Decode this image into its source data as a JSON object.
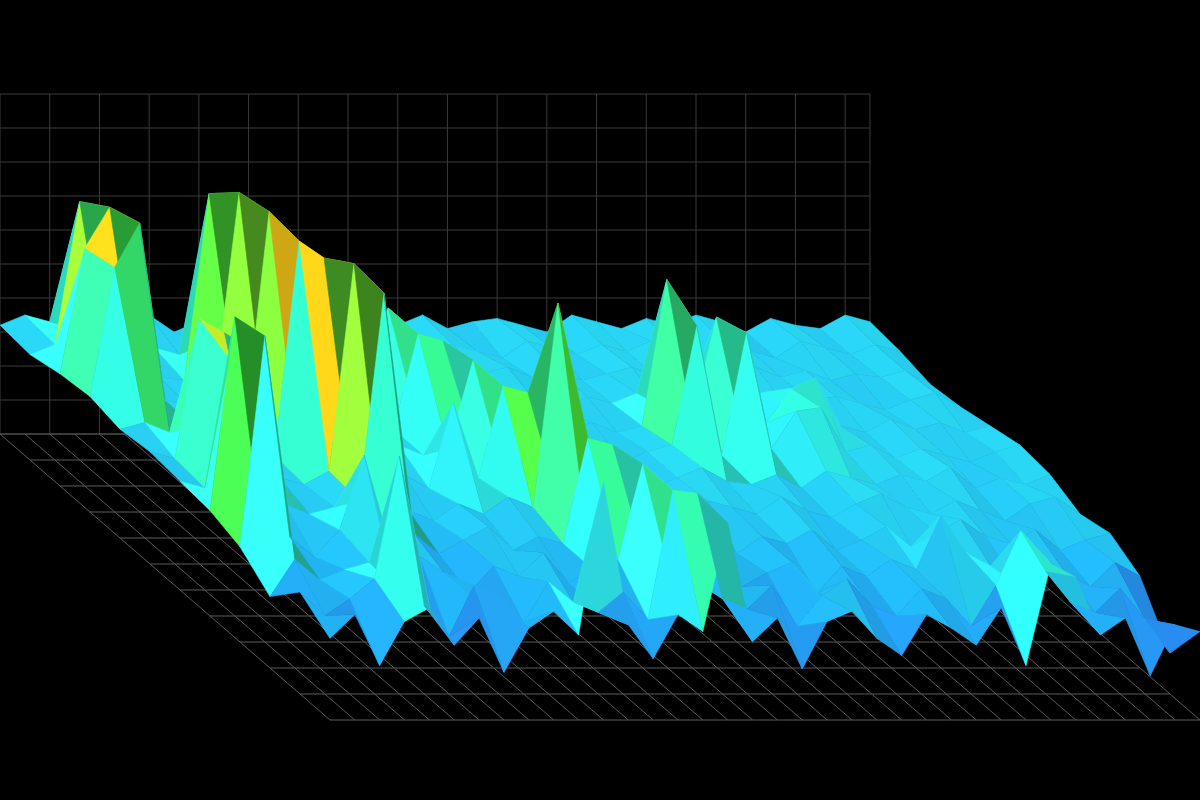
{
  "chart_data": {
    "type": "surface",
    "xlim": [
      0,
      35
    ],
    "ylim": [
      0,
      11
    ],
    "zlim": [
      0,
      10
    ],
    "tick_labels": false,
    "grid": true,
    "cells": [
      [
        2.4,
        3.1,
        1.6,
        2.9,
        3.3,
        2.2,
        3.0,
        1.4,
        2.7,
        3.2,
        2.5,
        7.0,
        2.8,
        1.8,
        3.1,
        2.6,
        5.8,
        2.3,
        3.0,
        1.5,
        2.9,
        3.2,
        2.4,
        1.9,
        3.1,
        2.7,
        2.2,
        3.3,
        1.6,
        4.6,
        4.2,
        2.5,
        3.0,
        1.3,
        2.8,
        2.6
      ],
      [
        3.0,
        2.3,
        2.8,
        3.4,
        7.0,
        2.6,
        1.7,
        3.2,
        2.9,
        2.1,
        3.3,
        2.7,
        2.4,
        3.0,
        2.2,
        6.0,
        5.9,
        2.8,
        2.5,
        3.2,
        2.0,
        2.9,
        3.4,
        2.6,
        2.3,
        3.1,
        2.8,
        2.0,
        3.2,
        4.8,
        3.6,
        2.7,
        2.4,
        3.1,
        2.2,
        1.2
      ],
      [
        2.1,
        3.2,
        2.6,
        2.9,
        3.1,
        2.4,
        3.3,
        2.8,
        2.2,
        3.0,
        2.7,
        3.4,
        2.5,
        2.9,
        3.2,
        6.0,
        3.0,
        2.6,
        3.3,
        2.4,
        2.8,
        3.1,
        2.2,
        3.0,
        2.7,
        3.2,
        2.9,
        4.5,
        3.4,
        3.0,
        2.5,
        3.3,
        2.8,
        2.4,
        3.1,
        2.7
      ],
      [
        2.8,
        9.0,
        3.1,
        2.5,
        3.3,
        5.5,
        2.9,
        3.2,
        2.6,
        3.0,
        3.4,
        2.7,
        3.1,
        2.9,
        6.0,
        5.8,
        3.2,
        2.8,
        3.0,
        3.5,
        2.6,
        3.1,
        2.9,
        3.3,
        2.7,
        3.0,
        3.4,
        2.8,
        3.2,
        3.6,
        3.1,
        2.9,
        3.3,
        2.7,
        3.0,
        3.2
      ],
      [
        3.1,
        8.8,
        2.9,
        3.3,
        3.0,
        3.2,
        3.4,
        9.5,
        3.1,
        2.8,
        3.3,
        3.0,
        3.5,
        3.2,
        9.2,
        3.4,
        3.0,
        3.3,
        2.9,
        3.1,
        3.4,
        3.2,
        3.0,
        3.5,
        3.1,
        2.9,
        3.3,
        3.6,
        3.2,
        3.0,
        3.4,
        3.1,
        2.8,
        3.3,
        3.5,
        3.0
      ],
      [
        3.2,
        3.0,
        6.8,
        7.0,
        3.3,
        3.1,
        3.5,
        9.6,
        3.2,
        3.4,
        3.0,
        5.5,
        3.3,
        6.0,
        5.8,
        3.2,
        3.5,
        3.1,
        3.4,
        3.0,
        3.3,
        3.6,
        3.2,
        3.1,
        3.4,
        3.0,
        3.5,
        3.3,
        3.1,
        3.4,
        3.2,
        3.6,
        3.0,
        3.3,
        3.1,
        3.4
      ],
      [
        3.3,
        3.1,
        7.2,
        6.8,
        3.4,
        3.2,
        9.5,
        9.0,
        3.3,
        3.1,
        3.5,
        3.2,
        3.4,
        6.0,
        3.3,
        3.1,
        3.5,
        3.2,
        3.4,
        3.0,
        3.3,
        3.5,
        7.0,
        3.2,
        6.8,
        3.4,
        4.5,
        4.6,
        3.3,
        3.5,
        3.1,
        3.4,
        3.2,
        3.0,
        3.3,
        3.5
      ],
      [
        3.2,
        3.4,
        3.1,
        3.3,
        3.5,
        3.2,
        9.6,
        3.4,
        3.1,
        3.3,
        3.5,
        3.2,
        6.0,
        5.8,
        3.4,
        3.1,
        3.3,
        3.5,
        3.2,
        3.4,
        3.1,
        3.3,
        7.6,
        3.5,
        6.5,
        3.2,
        3.4,
        4.4,
        4.7,
        3.3,
        3.1,
        3.5,
        3.2,
        3.4,
        3.1,
        3.3
      ],
      [
        3.4,
        7.2,
        8.5,
        3.3,
        3.1,
        3.5,
        9.4,
        3.2,
        3.4,
        3.1,
        3.3,
        3.5,
        6.0,
        3.2,
        3.4,
        3.1,
        3.3,
        3.5,
        3.2,
        3.0,
        3.4,
        3.2,
        3.5,
        3.1,
        3.3,
        3.4,
        3.2,
        3.5,
        3.1,
        3.3,
        3.4,
        3.2,
        3.0,
        3.3,
        3.5,
        3.1
      ],
      [
        3.3,
        7.0,
        8.2,
        3.4,
        3.2,
        3.1,
        8.6,
        3.3,
        3.5,
        3.2,
        3.4,
        3.1,
        3.3,
        3.5,
        3.2,
        3.4,
        3.1,
        3.3,
        3.5,
        3.2,
        3.4,
        3.1,
        3.3,
        3.5,
        3.2,
        3.4,
        3.0,
        3.3,
        3.5,
        3.2,
        3.4,
        3.1,
        3.3,
        3.2,
        3.4,
        3.0
      ],
      [
        3.1,
        3.4,
        7.6,
        3.2,
        3.5,
        3.3,
        3.1,
        3.4,
        3.2,
        3.5,
        3.0,
        3.3,
        3.4,
        3.2,
        3.5,
        3.1,
        3.3,
        3.4,
        3.2,
        3.0,
        3.5,
        3.3,
        3.1,
        3.4,
        3.2,
        3.5,
        3.3,
        3.1,
        3.4,
        3.2,
        3.0,
        3.5,
        3.3,
        3.1,
        3.4,
        3.2
      ],
      [
        3.2,
        3.5,
        3.3,
        3.1,
        3.4,
        3.2,
        3.5,
        3.0,
        3.3,
        3.4,
        3.1,
        3.2,
        3.5,
        3.3,
        3.4,
        3.0,
        3.2,
        3.5,
        3.1,
        3.3,
        3.4,
        3.2,
        3.0,
        3.5,
        3.3,
        3.1,
        3.4,
        3.2,
        3.5,
        3.3,
        3.0,
        3.4,
        3.2,
        3.1,
        3.5,
        3.3
      ]
    ]
  }
}
